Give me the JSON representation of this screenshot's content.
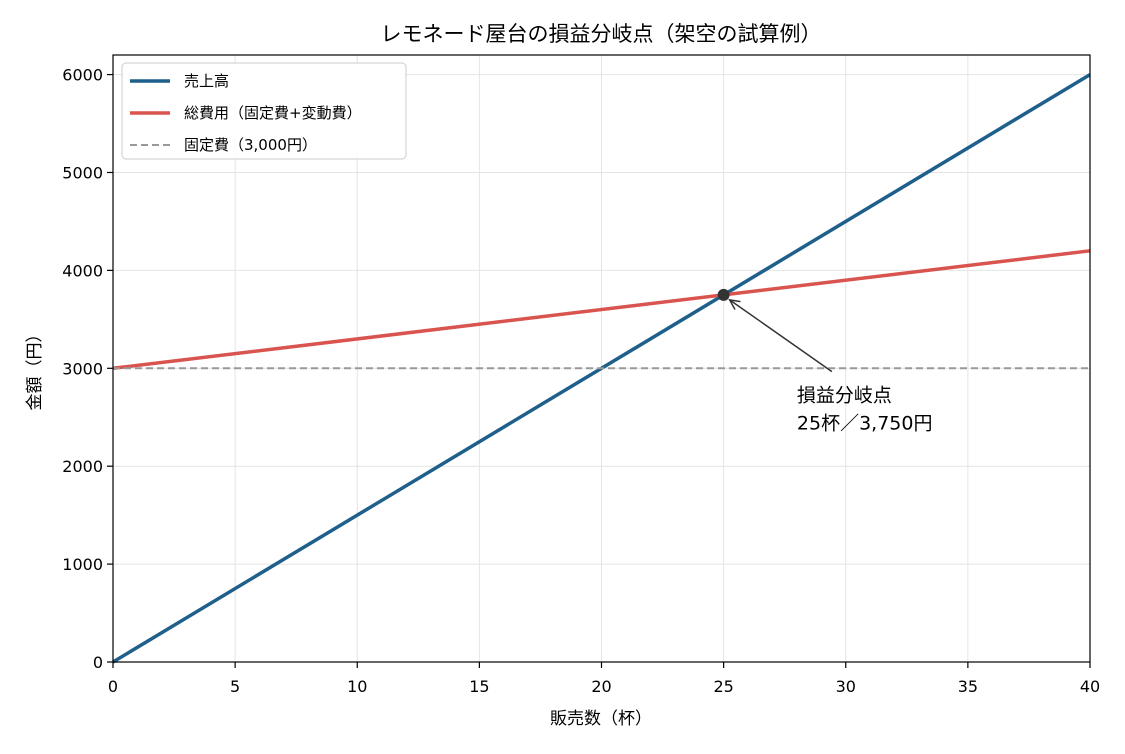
{
  "chart_data": {
    "type": "line",
    "title": "レモネード屋台の損益分岐点（架空の試算例）",
    "xlabel": "販売数（杯）",
    "ylabel": "金額（円）",
    "xlim": [
      0,
      40
    ],
    "ylim": [
      0,
      6200
    ],
    "xticks": [
      0,
      5,
      10,
      15,
      20,
      25,
      30,
      35,
      40
    ],
    "yticks": [
      0,
      1000,
      2000,
      3000,
      4000,
      5000,
      6000
    ],
    "grid": true,
    "legend_position": "top-left",
    "series": [
      {
        "name": "売上高",
        "color": "#1f5f8b",
        "style": "solid",
        "x": [
          0,
          40
        ],
        "y": [
          0,
          6000
        ]
      },
      {
        "name": "総費用（固定費+変動費）",
        "color": "#d9534f",
        "style": "solid",
        "x": [
          0,
          40
        ],
        "y": [
          3000,
          4200
        ]
      },
      {
        "name": "固定費（3,000円）",
        "color": "#999999",
        "style": "dashed",
        "x": [
          0,
          40
        ],
        "y": [
          3000,
          3000
        ]
      }
    ],
    "annotations": [
      {
        "point": [
          25,
          3750
        ],
        "text_lines": [
          "損益分岐点",
          "25杯／3,750円"
        ],
        "text_anchor_data": [
          28,
          2660
        ],
        "marker_color": "#333333"
      }
    ]
  }
}
